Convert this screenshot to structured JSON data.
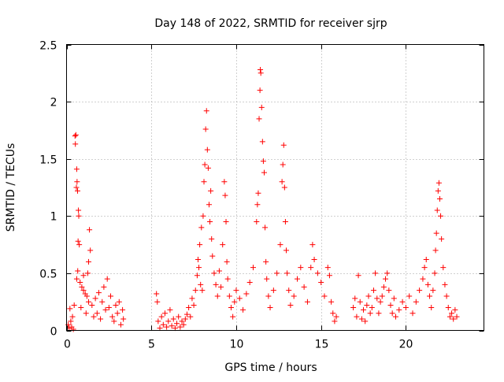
{
  "chart_data": {
    "type": "scatter",
    "title": "Day 148 of 2022, SRMTID for receiver sjrp",
    "xlabel": "GPS time / hours",
    "ylabel": "SRMTID / TECUs",
    "xlim": [
      0,
      24.6
    ],
    "ylim": [
      0,
      2.5
    ],
    "xticks": [
      0,
      5,
      10,
      15,
      20
    ],
    "xtick_labels": [
      "0",
      "5",
      "10",
      "15",
      "20"
    ],
    "yticks": [
      0,
      0.5,
      1,
      1.5,
      2,
      2.5
    ],
    "ytick_labels": [
      "0",
      "0.5",
      "1",
      "1.5",
      "2",
      "2.5"
    ],
    "grid": true,
    "marker": "+",
    "series": [
      {
        "name": "sjrp",
        "color": "#ff0000",
        "points": [
          [
            0.1,
            0.05
          ],
          [
            0.15,
            0.02
          ],
          [
            0.2,
            0.19
          ],
          [
            0.25,
            0.08
          ],
          [
            0.3,
            0.03
          ],
          [
            0.35,
            0.12
          ],
          [
            0.4,
            0.01
          ],
          [
            0.45,
            0.22
          ],
          [
            0.5,
            1.7
          ],
          [
            0.52,
            1.63
          ],
          [
            0.55,
            1.71
          ],
          [
            0.6,
            1.41
          ],
          [
            0.58,
            1.25
          ],
          [
            0.62,
            1.3
          ],
          [
            0.65,
            1.22
          ],
          [
            0.7,
            1.05
          ],
          [
            0.72,
            1.0
          ],
          [
            0.68,
            0.78
          ],
          [
            0.75,
            0.75
          ],
          [
            0.66,
            0.52
          ],
          [
            0.6,
            0.45
          ],
          [
            0.8,
            0.42
          ],
          [
            0.9,
            0.38
          ],
          [
            1.0,
            0.35
          ],
          [
            1.1,
            0.32
          ],
          [
            1.0,
            0.48
          ],
          [
            1.2,
            0.3
          ],
          [
            1.25,
            0.5
          ],
          [
            1.3,
            0.6
          ],
          [
            1.35,
            0.88
          ],
          [
            1.4,
            0.7
          ],
          [
            1.3,
            0.25
          ],
          [
            1.15,
            0.15
          ],
          [
            0.85,
            0.2
          ],
          [
            1.5,
            0.22
          ],
          [
            1.6,
            0.12
          ],
          [
            1.7,
            0.28
          ],
          [
            1.8,
            0.15
          ],
          [
            1.9,
            0.33
          ],
          [
            2.0,
            0.1
          ],
          [
            2.1,
            0.25
          ],
          [
            2.2,
            0.38
          ],
          [
            2.3,
            0.18
          ],
          [
            2.4,
            0.45
          ],
          [
            2.5,
            0.2
          ],
          [
            2.6,
            0.3
          ],
          [
            2.7,
            0.12
          ],
          [
            2.8,
            0.08
          ],
          [
            2.9,
            0.22
          ],
          [
            3.0,
            0.15
          ],
          [
            3.1,
            0.25
          ],
          [
            3.2,
            0.05
          ],
          [
            3.3,
            0.18
          ],
          [
            3.35,
            0.1
          ],
          [
            5.3,
            0.32
          ],
          [
            5.35,
            0.25
          ],
          [
            5.4,
            0.08
          ],
          [
            5.5,
            0.02
          ],
          [
            5.6,
            0.12
          ],
          [
            5.7,
            0.05
          ],
          [
            5.8,
            0.15
          ],
          [
            5.9,
            0.03
          ],
          [
            6.0,
            0.08
          ],
          [
            6.1,
            0.18
          ],
          [
            6.2,
            0.04
          ],
          [
            6.3,
            0.1
          ],
          [
            6.4,
            0.02
          ],
          [
            6.5,
            0.06
          ],
          [
            6.6,
            0.12
          ],
          [
            6.7,
            0.03
          ],
          [
            6.8,
            0.08
          ],
          [
            6.9,
            0.05
          ],
          [
            7.0,
            0.1
          ],
          [
            7.1,
            0.14
          ],
          [
            7.2,
            0.2
          ],
          [
            7.3,
            0.12
          ],
          [
            7.4,
            0.28
          ],
          [
            7.5,
            0.22
          ],
          [
            7.6,
            0.35
          ],
          [
            7.7,
            0.48
          ],
          [
            7.75,
            0.62
          ],
          [
            7.8,
            0.55
          ],
          [
            7.85,
            0.75
          ],
          [
            7.9,
            0.4
          ],
          [
            7.95,
            0.9
          ],
          [
            8.0,
            0.35
          ],
          [
            8.05,
            1.0
          ],
          [
            8.1,
            1.3
          ],
          [
            8.15,
            1.45
          ],
          [
            8.2,
            1.76
          ],
          [
            8.25,
            1.92
          ],
          [
            8.3,
            1.58
          ],
          [
            8.35,
            1.42
          ],
          [
            8.4,
            1.1
          ],
          [
            8.45,
            0.95
          ],
          [
            8.5,
            1.22
          ],
          [
            8.55,
            0.8
          ],
          [
            8.6,
            0.65
          ],
          [
            8.7,
            0.5
          ],
          [
            8.8,
            0.4
          ],
          [
            8.9,
            0.3
          ],
          [
            9.0,
            0.52
          ],
          [
            9.1,
            0.38
          ],
          [
            9.2,
            0.75
          ],
          [
            9.3,
            1.3
          ],
          [
            9.35,
            1.18
          ],
          [
            9.4,
            0.95
          ],
          [
            9.45,
            0.6
          ],
          [
            9.5,
            0.45
          ],
          [
            9.6,
            0.3
          ],
          [
            9.7,
            0.2
          ],
          [
            9.8,
            0.12
          ],
          [
            9.9,
            0.25
          ],
          [
            10.0,
            0.35
          ],
          [
            10.2,
            0.28
          ],
          [
            10.4,
            0.18
          ],
          [
            10.6,
            0.32
          ],
          [
            10.8,
            0.42
          ],
          [
            11.0,
            0.55
          ],
          [
            11.2,
            0.95
          ],
          [
            11.25,
            1.1
          ],
          [
            11.3,
            1.2
          ],
          [
            11.35,
            1.85
          ],
          [
            11.4,
            2.1
          ],
          [
            11.42,
            2.28
          ],
          [
            11.45,
            2.25
          ],
          [
            11.5,
            1.95
          ],
          [
            11.55,
            1.65
          ],
          [
            11.6,
            1.48
          ],
          [
            11.65,
            1.38
          ],
          [
            11.7,
            0.9
          ],
          [
            11.75,
            0.6
          ],
          [
            11.8,
            0.45
          ],
          [
            11.9,
            0.3
          ],
          [
            12.0,
            0.2
          ],
          [
            12.2,
            0.35
          ],
          [
            12.4,
            0.5
          ],
          [
            12.6,
            0.75
          ],
          [
            12.7,
            1.3
          ],
          [
            12.75,
            1.45
          ],
          [
            12.8,
            1.62
          ],
          [
            12.85,
            1.25
          ],
          [
            12.9,
            0.95
          ],
          [
            12.95,
            0.7
          ],
          [
            13.0,
            0.5
          ],
          [
            13.1,
            0.35
          ],
          [
            13.2,
            0.22
          ],
          [
            13.4,
            0.3
          ],
          [
            13.6,
            0.45
          ],
          [
            13.8,
            0.55
          ],
          [
            14.0,
            0.38
          ],
          [
            14.2,
            0.25
          ],
          [
            14.4,
            0.55
          ],
          [
            14.5,
            0.75
          ],
          [
            14.6,
            0.62
          ],
          [
            14.8,
            0.5
          ],
          [
            15.0,
            0.42
          ],
          [
            15.2,
            0.3
          ],
          [
            15.4,
            0.55
          ],
          [
            15.5,
            0.48
          ],
          [
            15.6,
            0.25
          ],
          [
            15.7,
            0.15
          ],
          [
            15.8,
            0.08
          ],
          [
            15.9,
            0.12
          ],
          [
            16.9,
            0.2
          ],
          [
            17.0,
            0.28
          ],
          [
            17.1,
            0.12
          ],
          [
            17.2,
            0.48
          ],
          [
            17.3,
            0.25
          ],
          [
            17.4,
            0.1
          ],
          [
            17.5,
            0.18
          ],
          [
            17.6,
            0.08
          ],
          [
            17.7,
            0.22
          ],
          [
            17.8,
            0.3
          ],
          [
            17.9,
            0.15
          ],
          [
            18.0,
            0.2
          ],
          [
            18.1,
            0.35
          ],
          [
            18.2,
            0.5
          ],
          [
            18.3,
            0.28
          ],
          [
            18.4,
            0.15
          ],
          [
            18.5,
            0.25
          ],
          [
            18.6,
            0.3
          ],
          [
            18.7,
            0.38
          ],
          [
            18.8,
            0.45
          ],
          [
            18.9,
            0.5
          ],
          [
            19.0,
            0.35
          ],
          [
            19.1,
            0.22
          ],
          [
            19.2,
            0.15
          ],
          [
            19.3,
            0.28
          ],
          [
            19.4,
            0.12
          ],
          [
            19.6,
            0.18
          ],
          [
            19.8,
            0.25
          ],
          [
            20.0,
            0.2
          ],
          [
            20.2,
            0.3
          ],
          [
            20.4,
            0.15
          ],
          [
            20.6,
            0.25
          ],
          [
            20.8,
            0.35
          ],
          [
            21.0,
            0.45
          ],
          [
            21.1,
            0.55
          ],
          [
            21.2,
            0.62
          ],
          [
            21.3,
            0.4
          ],
          [
            21.4,
            0.3
          ],
          [
            21.5,
            0.2
          ],
          [
            21.6,
            0.35
          ],
          [
            21.7,
            0.5
          ],
          [
            21.75,
            0.7
          ],
          [
            21.8,
            0.85
          ],
          [
            21.85,
            1.05
          ],
          [
            21.9,
            1.22
          ],
          [
            21.95,
            1.29
          ],
          [
            22.0,
            1.15
          ],
          [
            22.05,
            1.0
          ],
          [
            22.1,
            0.8
          ],
          [
            22.2,
            0.55
          ],
          [
            22.3,
            0.4
          ],
          [
            22.4,
            0.3
          ],
          [
            22.5,
            0.2
          ],
          [
            22.6,
            0.12
          ],
          [
            22.7,
            0.15
          ],
          [
            22.8,
            0.1
          ],
          [
            22.9,
            0.18
          ],
          [
            23.0,
            0.12
          ]
        ]
      }
    ]
  }
}
